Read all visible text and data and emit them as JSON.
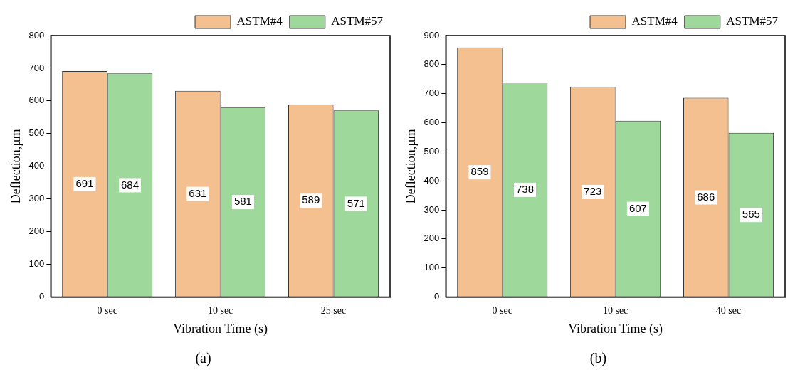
{
  "chart_data": [
    {
      "type": "bar",
      "xlabel": "Vibration Time (s)",
      "ylabel": "Deflection,µm",
      "categories": [
        "0 sec",
        "10 sec",
        "25 sec"
      ],
      "series": [
        {
          "name": "ASTM#4",
          "color": "#f5c08f",
          "values": [
            691,
            631,
            589
          ]
        },
        {
          "name": "ASTM#57",
          "color": "#9fd89b",
          "values": [
            684,
            581,
            571
          ]
        }
      ],
      "ylim": [
        0,
        800
      ],
      "yticks": [
        0,
        100,
        200,
        300,
        400,
        500,
        600,
        700,
        800
      ],
      "data_labels": true,
      "legend": "top right",
      "grid": false,
      "annotations": [
        "(a)"
      ]
    },
    {
      "type": "bar",
      "xlabel": "Vibration Time (s)",
      "ylabel": "Deflection,µm",
      "categories": [
        "0 sec",
        "10 sec",
        "40 sec"
      ],
      "series": [
        {
          "name": "ASTM#4",
          "color": "#f5c08f",
          "values": [
            859,
            723,
            686
          ]
        },
        {
          "name": "ASTM#57",
          "color": "#9fd89b",
          "values": [
            738,
            607,
            565
          ]
        }
      ],
      "ylim": [
        0,
        900
      ],
      "yticks": [
        0,
        100,
        200,
        300,
        400,
        500,
        600,
        700,
        800,
        900
      ],
      "data_labels": true,
      "legend": "top right",
      "grid": false,
      "annotations": [
        "(b)"
      ]
    }
  ]
}
